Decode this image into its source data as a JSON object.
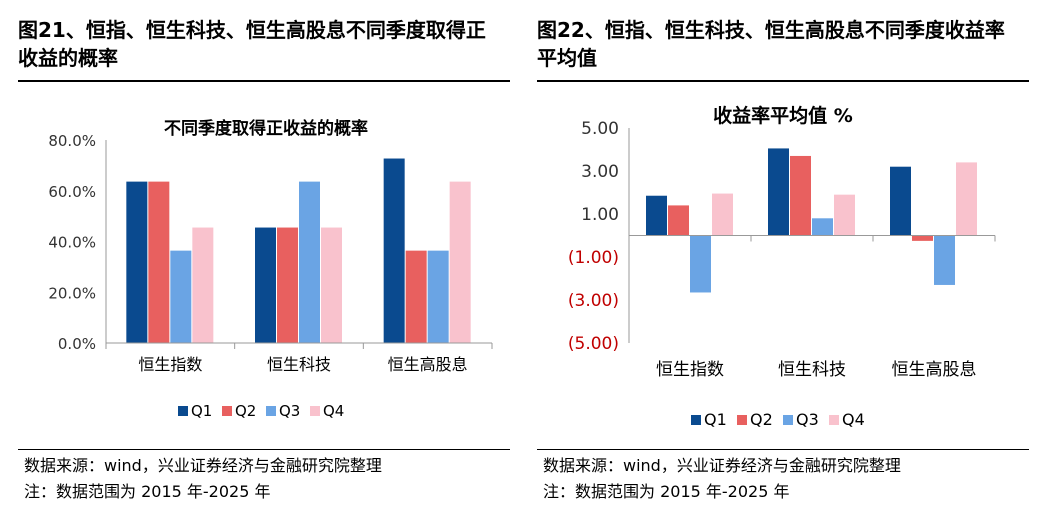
{
  "colors": {
    "Q1": "#0a4a8f",
    "Q2": "#e8605f",
    "Q3": "#6aa4e4",
    "Q4": "#f9c2cd",
    "neg_tick": "#c00000"
  },
  "left": {
    "panel_title": "图21、恒指、恒生科技、恒生高股息不同季度取得正收益的概率",
    "source": "数据来源：wind，兴业证券经济与金融研究院整理",
    "note": "注：数据范围为 2015 年-2025 年"
  },
  "right": {
    "panel_title": "图22、恒指、恒生科技、恒生高股息不同季度收益率平均值",
    "source": "数据来源：wind，兴业证券经济与金融研究院整理",
    "note": "注：数据范围为 2015 年-2025 年"
  },
  "chart_data": [
    {
      "type": "bar",
      "title": "不同季度取得正收益的概率",
      "categories": [
        "恒生指数",
        "恒生科技",
        "恒生高股息"
      ],
      "series": [
        {
          "name": "Q1",
          "values": [
            63.6,
            45.5,
            72.7
          ]
        },
        {
          "name": "Q2",
          "values": [
            63.6,
            45.5,
            36.4
          ]
        },
        {
          "name": "Q3",
          "values": [
            36.4,
            63.6,
            36.4
          ]
        },
        {
          "name": "Q4",
          "values": [
            45.5,
            45.5,
            63.6
          ]
        }
      ],
      "ylim": [
        0,
        80
      ],
      "yticks": [
        0,
        20,
        40,
        60,
        80
      ],
      "ytick_labels": [
        "0.0%",
        "20.0%",
        "40.0%",
        "60.0%",
        "80.0%"
      ],
      "legend": "bottom",
      "grid": false
    },
    {
      "type": "bar",
      "title": "收益率平均值 %",
      "categories": [
        "恒生指数",
        "恒生科技",
        "恒生高股息"
      ],
      "series": [
        {
          "name": "Q1",
          "values": [
            1.85,
            4.05,
            3.2
          ]
        },
        {
          "name": "Q2",
          "values": [
            1.4,
            3.7,
            -0.25
          ]
        },
        {
          "name": "Q3",
          "values": [
            -2.65,
            0.8,
            -2.3
          ]
        },
        {
          "name": "Q4",
          "values": [
            1.95,
            1.9,
            3.4
          ]
        }
      ],
      "ylim": [
        -5,
        5
      ],
      "yticks": [
        5,
        3,
        1,
        -1,
        -3,
        -5
      ],
      "ytick_labels": [
        "5.00",
        "3.00",
        "1.00",
        "(1.00)",
        "(3.00)",
        "(5.00)"
      ],
      "legend": "bottom",
      "grid": false
    }
  ]
}
